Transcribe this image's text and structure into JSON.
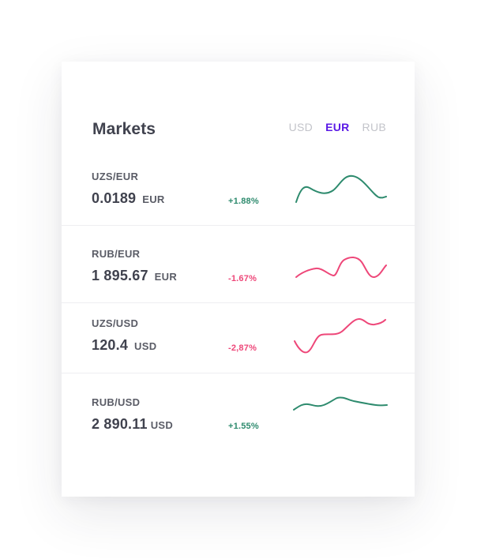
{
  "widget": {
    "title": "Markets",
    "currency_tabs": [
      {
        "label": "USD",
        "active": false
      },
      {
        "label": "EUR",
        "active": true
      },
      {
        "label": "RUB",
        "active": false
      }
    ]
  },
  "markets": [
    {
      "pair": "UZS/EUR",
      "price": "0.0189",
      "unit": "EUR",
      "change": "+1.88%",
      "trend": "up"
    },
    {
      "pair": "RUB/EUR",
      "price": "1 895.67",
      "unit": "EUR",
      "change": "-1.67%",
      "trend": "down"
    },
    {
      "pair": "UZS/USD",
      "price": "120.4",
      "unit": "USD",
      "change": "-2,87%",
      "trend": "down"
    },
    {
      "pair": "RUB/USD",
      "price": "2 890.11",
      "unit": "USD",
      "change": "+1.55%",
      "trend": "up"
    }
  ],
  "colors": {
    "accent": "#5b1ae6",
    "positive": "#2e8b6e",
    "negative": "#ee4779",
    "muted_tab": "#c3c4ca"
  }
}
